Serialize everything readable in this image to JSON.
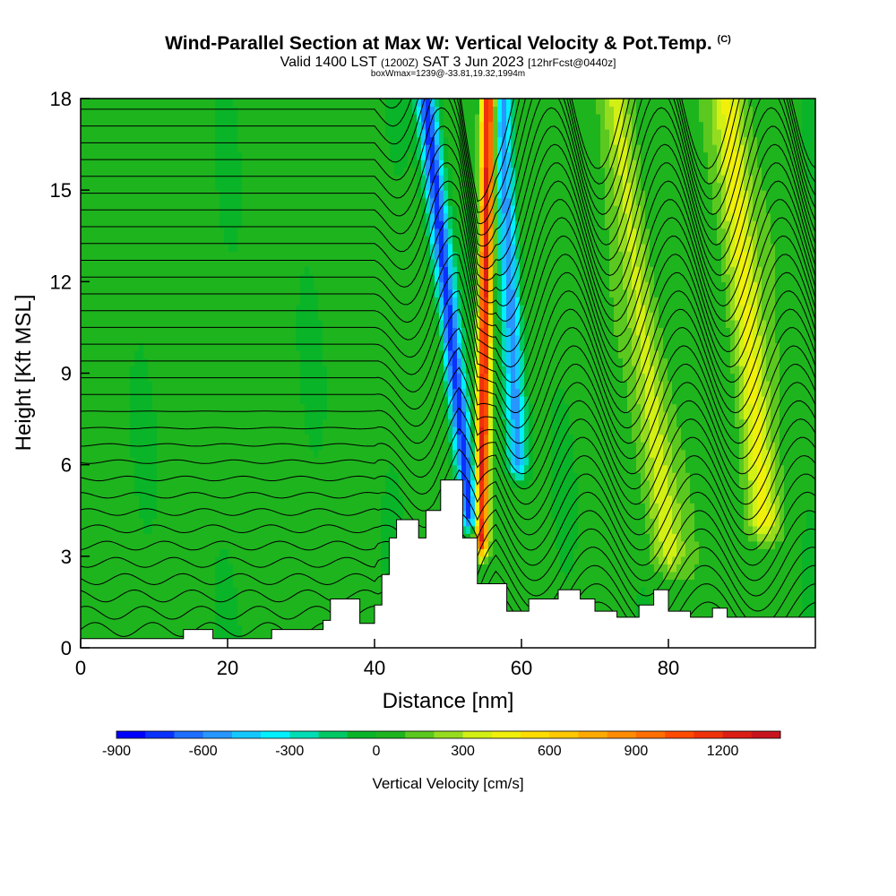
{
  "title": {
    "main": "Wind-Parallel Section at Max W: Vertical Velocity & Pot.Temp.",
    "copyright": "(C)",
    "valid_prefix": "Valid 1400 LST",
    "valid_utc": "(1200Z)",
    "valid_date": "SAT 3 Jun 2023",
    "forecast": "[12hrFcst@0440z]",
    "box_info": "boxWmax=1239@-33.81,19.32,1994m"
  },
  "colors": {
    "background": "#ffffff",
    "terrain": "#ffffff",
    "contour": "#000000",
    "colorbar": [
      "#0000ff",
      "#0a32ff",
      "#1e6eff",
      "#2896ff",
      "#14c8ff",
      "#00f0ff",
      "#00dcb4",
      "#00c864",
      "#0ab428",
      "#1eb41e",
      "#5ac81e",
      "#96dc1e",
      "#d2f014",
      "#f0f00a",
      "#ffdc00",
      "#ffc800",
      "#ffaa00",
      "#ff8c00",
      "#ff6e00",
      "#ff4b00",
      "#f0320a",
      "#dc1e14",
      "#c8141e"
    ]
  },
  "chart_data": {
    "type": "heatmap",
    "xlabel": "Distance [nm]",
    "ylabel": "Height [Kft MSL]",
    "xlim": [
      0,
      100
    ],
    "ylim": [
      0,
      18
    ],
    "xticks": [
      0,
      20,
      40,
      60,
      80
    ],
    "yticks": [
      0,
      3,
      6,
      9,
      12,
      15,
      18
    ],
    "colorbar": {
      "label": "Vertical Velocity [cm/s]",
      "min": -900,
      "max": 1400,
      "step": 100,
      "tick_values": [
        -900,
        -600,
        -300,
        0,
        300,
        600,
        900,
        1200
      ]
    },
    "field": "vertical_velocity",
    "contours": "potential_temperature",
    "max_w": 1239,
    "terrain_profile": {
      "x": [
        0,
        14,
        14,
        18,
        18,
        26,
        26,
        33,
        33,
        34,
        34,
        38,
        38,
        40,
        40,
        41,
        41,
        42,
        42,
        43,
        43,
        46,
        46,
        47,
        47,
        49,
        49,
        52,
        52,
        54,
        54,
        58,
        58,
        61,
        61,
        65,
        65,
        68,
        68,
        70,
        70,
        73,
        73,
        76,
        76,
        78,
        78,
        80,
        80,
        83,
        83,
        86,
        86,
        88,
        88,
        91,
        91,
        100
      ],
      "y": [
        0.3,
        0.3,
        0.6,
        0.6,
        0.3,
        0.3,
        0.6,
        0.6,
        0.9,
        0.9,
        1.6,
        1.6,
        0.8,
        0.8,
        1.4,
        1.4,
        2.4,
        2.4,
        3.6,
        3.6,
        4.2,
        4.2,
        3.6,
        3.6,
        4.5,
        4.5,
        5.5,
        5.5,
        3.6,
        3.6,
        2.1,
        2.1,
        1.2,
        1.2,
        1.6,
        1.6,
        1.9,
        1.9,
        1.6,
        1.6,
        1.2,
        1.2,
        1.0,
        1.0,
        1.4,
        1.4,
        1.9,
        1.9,
        1.2,
        1.2,
        1.0,
        1.0,
        1.3,
        1.3,
        1.0,
        1.0,
        1.0,
        1.0
      ]
    },
    "velocity_features": [
      {
        "kind": "updraft_core",
        "x_bottom": 54.5,
        "x_top": 55.5,
        "y_bottom": 3.5,
        "y_top": 18,
        "peak": 1239
      },
      {
        "kind": "downdraft",
        "x_bottom": 53,
        "x_top": 47,
        "y_bottom": 4.3,
        "y_top": 18,
        "peak": -800
      },
      {
        "kind": "downdraft",
        "x_bottom": 59.5,
        "x_top": 57.5,
        "y_bottom": 6,
        "y_top": 17,
        "peak": -600
      },
      {
        "kind": "updraft_band",
        "x_bottom": 93,
        "x_top": 88,
        "y_bottom": 4,
        "y_top": 18,
        "peak": 400
      },
      {
        "kind": "updraft_band",
        "x_bottom": 80,
        "x_top": 73,
        "y_bottom": 3,
        "y_top": 18,
        "peak": 300
      }
    ]
  }
}
